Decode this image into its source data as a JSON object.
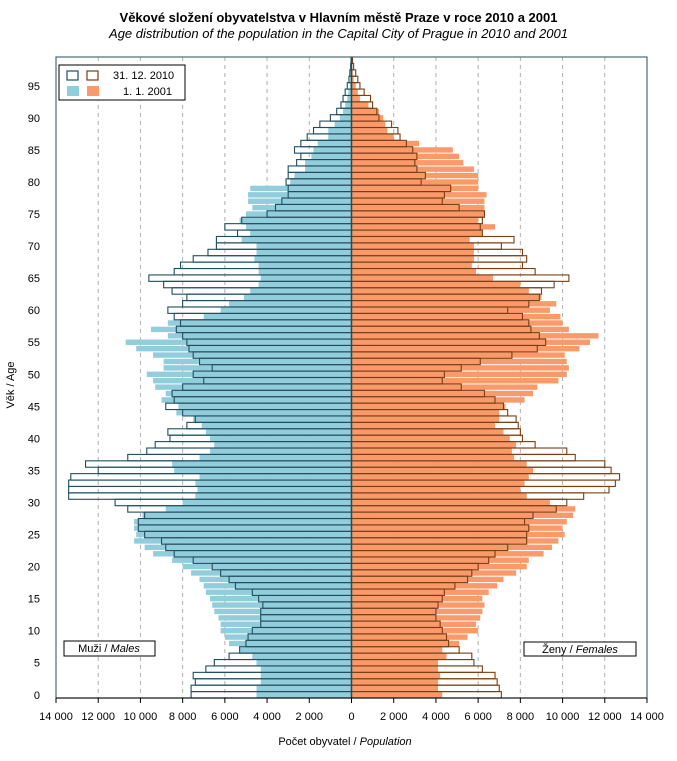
{
  "chart_data": {
    "type": "bar",
    "subtype": "population-pyramid",
    "title": "Věkové složení obyvatelstva  v Hlavním městě Praze v roce 2010 a 2001",
    "subtitle": "Age distribution of the population  in the Capital City of Prague in 2010 and 2001",
    "xlabel": "Počet obyvatel / ",
    "xlabel_italic": "Population",
    "ylabel": "Věk / Age",
    "xlim": [
      -14000,
      14000
    ],
    "ylim": [
      0,
      99
    ],
    "x_ticks": [
      -14000,
      -12000,
      -10000,
      -8000,
      -6000,
      -4000,
      -2000,
      0,
      2000,
      4000,
      6000,
      8000,
      10000,
      12000,
      14000
    ],
    "x_tick_labels": [
      "14 000",
      "12 000",
      "10 000",
      "8 000",
      "6 000",
      "4 000",
      "2 000",
      "0",
      "2 000",
      "4 000",
      "6 000",
      "8 000",
      "10 000",
      "12 000",
      "14 000"
    ],
    "y_ticks": [
      0,
      5,
      10,
      15,
      20,
      25,
      30,
      35,
      40,
      45,
      50,
      55,
      60,
      65,
      70,
      75,
      80,
      85,
      90,
      95
    ],
    "grid": "vertical-dashed",
    "legend": {
      "position": "top-left",
      "entries": [
        {
          "label": "31. 12. 2010",
          "style": "outline",
          "male_color": "#1f4e5f",
          "female_color": "#7a3e10"
        },
        {
          "label": "1. 1. 2001",
          "style": "filled",
          "male_color": "#92cddc",
          "female_color": "#fa9a6b"
        }
      ]
    },
    "annotations": {
      "males": {
        "text": "Muži / ",
        "italic": "Males"
      },
      "females": {
        "text": "Ženy / ",
        "italic": "Females"
      }
    },
    "colors": {
      "male_2001_fill": "#92cddc",
      "female_2001_fill": "#fa9a6b",
      "male_2010_outline": "#1f4e5f",
      "female_2010_outline": "#7a3e10",
      "grid": "#b0b0b0",
      "frame": "#4a6a78"
    },
    "ages": [
      0,
      1,
      2,
      3,
      4,
      5,
      6,
      7,
      8,
      9,
      10,
      11,
      12,
      13,
      14,
      15,
      16,
      17,
      18,
      19,
      20,
      21,
      22,
      23,
      24,
      25,
      26,
      27,
      28,
      29,
      30,
      31,
      32,
      33,
      34,
      35,
      36,
      37,
      38,
      39,
      40,
      41,
      42,
      43,
      44,
      45,
      46,
      47,
      48,
      49,
      50,
      51,
      52,
      53,
      54,
      55,
      56,
      57,
      58,
      59,
      60,
      61,
      62,
      63,
      64,
      65,
      66,
      67,
      68,
      69,
      70,
      71,
      72,
      73,
      74,
      75,
      76,
      77,
      78,
      79,
      80,
      81,
      82,
      83,
      84,
      85,
      86,
      87,
      88,
      89,
      90,
      91,
      92,
      93,
      94,
      95,
      96,
      97,
      98,
      99
    ],
    "series": [
      {
        "name": "Muži 1. 1. 2001",
        "sex": "male",
        "year": "2001",
        "values": [
          4500,
          4500,
          4300,
          4300,
          4300,
          4500,
          4700,
          5300,
          5800,
          6000,
          6200,
          6200,
          6300,
          6500,
          6600,
          6700,
          6900,
          7000,
          7200,
          7600,
          8000,
          8500,
          9400,
          9800,
          10300,
          10200,
          10300,
          10300,
          9900,
          8800,
          8000,
          7400,
          7300,
          7400,
          7200,
          8400,
          8500,
          7200,
          6700,
          6500,
          6700,
          6900,
          7100,
          7500,
          8300,
          8200,
          9000,
          8800,
          9300,
          9400,
          9700,
          8900,
          8900,
          9400,
          10200,
          10700,
          8700,
          9500,
          8700,
          7000,
          6200,
          5800,
          5100,
          4800,
          4400,
          4300,
          4400,
          4400,
          4600,
          4500,
          4500,
          5200,
          4800,
          5000,
          5300,
          5000,
          4700,
          4900,
          4900,
          4800,
          2900,
          2700,
          2200,
          2200,
          1900,
          1800,
          1600,
          1100,
          1100,
          800,
          550,
          400,
          300,
          200,
          150,
          80,
          60,
          40,
          20,
          10
        ]
      },
      {
        "name": "Ženy 1. 1. 2001",
        "sex": "female",
        "year": "2001",
        "values": [
          4300,
          4100,
          4100,
          4200,
          4100,
          4100,
          4500,
          4300,
          5100,
          5500,
          6000,
          5900,
          6100,
          6200,
          6300,
          6200,
          6500,
          6900,
          7200,
          7800,
          8300,
          8400,
          9100,
          9500,
          9800,
          10100,
          10000,
          10200,
          10500,
          10600,
          9400,
          8300,
          8000,
          8200,
          8400,
          8600,
          8300,
          7700,
          7600,
          7800,
          7500,
          7200,
          6800,
          7000,
          7000,
          7300,
          8200,
          8600,
          8800,
          9800,
          10200,
          10300,
          10200,
          10100,
          10800,
          11300,
          11700,
          10300,
          10000,
          9900,
          9400,
          9700,
          9000,
          8400,
          8000,
          6700,
          5900,
          5700,
          5800,
          5800,
          5800,
          5600,
          6200,
          6800,
          6000,
          6300,
          6300,
          6300,
          6400,
          6000,
          6000,
          6000,
          5800,
          5300,
          5100,
          4800,
          3200,
          2000,
          1700,
          1600,
          1500,
          1300,
          800,
          400,
          300,
          200,
          100,
          60,
          30,
          10
        ]
      },
      {
        "name": "Muži 31. 12. 2010",
        "sex": "male",
        "year": "2010",
        "values": [
          7600,
          7600,
          7400,
          7500,
          6900,
          6500,
          5800,
          5300,
          5000,
          4900,
          4700,
          4300,
          4300,
          4300,
          4200,
          4400,
          4700,
          5500,
          5800,
          6200,
          6600,
          7500,
          8400,
          8800,
          9000,
          9800,
          10100,
          10100,
          9800,
          10600,
          11200,
          13400,
          13400,
          13400,
          13300,
          12000,
          12600,
          10600,
          9700,
          9300,
          8600,
          8700,
          7800,
          7400,
          8000,
          8800,
          8400,
          8500,
          8000,
          7000,
          7500,
          6600,
          7200,
          7500,
          7700,
          7800,
          8000,
          8300,
          8100,
          8400,
          8700,
          8000,
          7800,
          8500,
          8900,
          9600,
          8400,
          8100,
          7500,
          6800,
          6400,
          6400,
          5400,
          6000,
          5200,
          4000,
          3600,
          3300,
          3000,
          3000,
          3100,
          3000,
          3000,
          2600,
          2400,
          2700,
          2400,
          2100,
          1800,
          1500,
          1000,
          700,
          500,
          400,
          300,
          200,
          120,
          80,
          40,
          20
        ]
      },
      {
        "name": "Ženy 31. 12. 2010",
        "sex": "female",
        "year": "2010",
        "values": [
          7100,
          7000,
          6900,
          6800,
          6200,
          5800,
          5700,
          5100,
          4600,
          4500,
          4300,
          4200,
          4000,
          4000,
          4100,
          4300,
          4400,
          4900,
          5500,
          5700,
          6000,
          6500,
          6800,
          7400,
          8300,
          8300,
          8400,
          8200,
          8600,
          9700,
          10200,
          11000,
          12200,
          12500,
          12700,
          12300,
          12000,
          10600,
          10200,
          8700,
          8100,
          8000,
          7900,
          7800,
          7400,
          7200,
          6800,
          6300,
          5200,
          4300,
          4400,
          5200,
          6100,
          7600,
          8800,
          9200,
          8900,
          8500,
          8400,
          8100,
          7400,
          8400,
          8900,
          9000,
          9600,
          10300,
          8700,
          8100,
          8300,
          8100,
          7100,
          7700,
          6200,
          6100,
          6200,
          6300,
          5100,
          4300,
          4400,
          4700,
          3300,
          3500,
          3100,
          3000,
          3100,
          2900,
          2600,
          2300,
          2200,
          1900,
          1300,
          1200,
          1000,
          900,
          600,
          400,
          300,
          200,
          100,
          50
        ]
      }
    ]
  }
}
